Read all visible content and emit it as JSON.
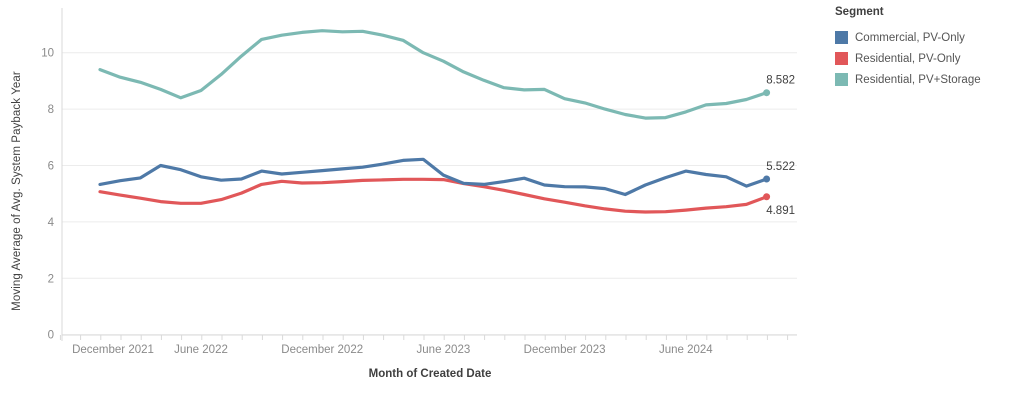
{
  "chart_data": {
    "type": "line",
    "title": "",
    "xlabel": "Month of Created Date",
    "ylabel": "Moving Average of Avg. System Payback Year",
    "ylim": [
      0,
      11.3
    ],
    "y_ticks": [
      0,
      2,
      4,
      6,
      8,
      10
    ],
    "x_tick_labels": [
      "December 2021",
      "June 2022",
      "December 2022",
      "June 2023",
      "December 2023",
      "June 2024"
    ],
    "grid": "horizontal",
    "x_months": [
      "2022-01",
      "2022-02",
      "2022-03",
      "2022-04",
      "2022-05",
      "2022-06",
      "2022-07",
      "2022-08",
      "2022-09",
      "2022-10",
      "2022-11",
      "2022-12",
      "2023-01",
      "2023-02",
      "2023-03",
      "2023-04",
      "2023-05",
      "2023-06",
      "2023-07",
      "2023-08",
      "2023-09",
      "2023-10",
      "2023-11",
      "2023-12",
      "2024-01",
      "2024-02",
      "2024-03",
      "2024-04",
      "2024-05",
      "2024-06",
      "2024-07",
      "2024-08",
      "2024-09",
      "2024-10"
    ],
    "legend": {
      "title": "Segment",
      "position": "right"
    },
    "series": [
      {
        "name": "Residential, PV+Storage",
        "color": "#7CB9B3",
        "end_label": "8.582",
        "values": [
          9.4,
          9.13,
          8.95,
          8.7,
          8.4,
          8.66,
          9.23,
          9.88,
          10.47,
          10.62,
          10.72,
          10.78,
          10.74,
          10.76,
          10.62,
          10.44,
          10.0,
          9.7,
          9.32,
          9.02,
          8.76,
          8.68,
          8.7,
          8.37,
          8.22,
          8.0,
          7.81,
          7.68,
          7.7,
          7.9,
          8.15,
          8.2,
          8.34,
          8.582
        ]
      },
      {
        "name": "Residential, PV-Only",
        "color": "#E15759",
        "end_label": "4.891",
        "values": [
          5.07,
          4.95,
          4.84,
          4.72,
          4.66,
          4.66,
          4.79,
          5.02,
          5.33,
          5.44,
          5.38,
          5.39,
          5.43,
          5.47,
          5.49,
          5.51,
          5.51,
          5.5,
          5.36,
          5.25,
          5.12,
          4.97,
          4.82,
          4.7,
          4.57,
          4.46,
          4.38,
          4.35,
          4.36,
          4.42,
          4.49,
          4.54,
          4.62,
          4.891
        ]
      },
      {
        "name": "Commercial, PV-Only",
        "color": "#4E79A7",
        "end_label": "5.522",
        "values": [
          5.33,
          5.46,
          5.56,
          6.0,
          5.85,
          5.6,
          5.48,
          5.52,
          5.8,
          5.7,
          5.76,
          5.82,
          5.88,
          5.94,
          6.05,
          6.18,
          6.22,
          5.66,
          5.37,
          5.33,
          5.43,
          5.55,
          5.31,
          5.25,
          5.24,
          5.18,
          4.97,
          5.31,
          5.57,
          5.8,
          5.68,
          5.6,
          5.27,
          5.522
        ]
      }
    ],
    "legend_order": [
      2,
      1,
      0
    ],
    "end_label_color": "#414141",
    "axis_text_color": "#8a8a8a"
  }
}
